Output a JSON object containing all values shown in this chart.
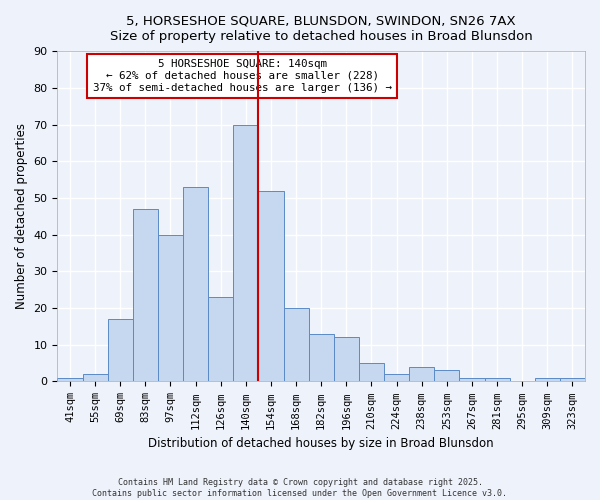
{
  "title_line1": "5, HORSESHOE SQUARE, BLUNSDON, SWINDON, SN26 7AX",
  "title_line2": "Size of property relative to detached houses in Broad Blunsdon",
  "categories": [
    "41sqm",
    "55sqm",
    "69sqm",
    "83sqm",
    "97sqm",
    "112sqm",
    "126sqm",
    "140sqm",
    "154sqm",
    "168sqm",
    "182sqm",
    "196sqm",
    "210sqm",
    "224sqm",
    "238sqm",
    "253sqm",
    "267sqm",
    "281sqm",
    "295sqm",
    "309sqm",
    "323sqm"
  ],
  "values": [
    1,
    2,
    17,
    47,
    40,
    53,
    23,
    70,
    52,
    20,
    13,
    12,
    5,
    2,
    4,
    3,
    1,
    1,
    0,
    1,
    1
  ],
  "bar_color": "#c5d8f0",
  "bar_edge_color": "#5a8ac6",
  "xlabel": "Distribution of detached houses by size in Broad Blunsdon",
  "ylabel": "Number of detached properties",
  "ylim": [
    0,
    90
  ],
  "yticks": [
    0,
    10,
    20,
    30,
    40,
    50,
    60,
    70,
    80,
    90
  ],
  "vline_x": 7,
  "vline_color": "#cc0000",
  "annotation_title": "5 HORSESHOE SQUARE: 140sqm",
  "annotation_line1": "← 62% of detached houses are smaller (228)",
  "annotation_line2": "37% of semi-detached houses are larger (136) →",
  "annotation_box_color": "#cc0000",
  "background_color": "#eef2fb",
  "grid_color": "#ffffff",
  "footer_line1": "Contains HM Land Registry data © Crown copyright and database right 2025.",
  "footer_line2": "Contains public sector information licensed under the Open Government Licence v3.0."
}
